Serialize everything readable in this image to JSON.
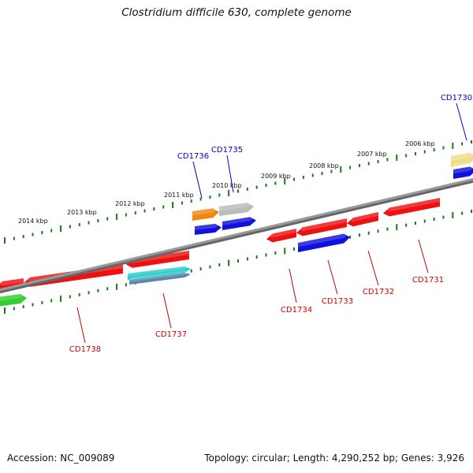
{
  "header": {
    "title": "Clostridium difficile 630, complete genome"
  },
  "footer": {
    "accession": "Accession: NC_009089",
    "summary": "Topology: circular; Length: 4,290,252 bp; Genes: 3,926"
  },
  "colors": {
    "backbone": "#888888",
    "tick": "#1a7a1a",
    "label_forward": "#0000cc",
    "label_reverse": "#cc0000",
    "red": "#ee1111",
    "blue": "#1111dd",
    "orange": "#ee8811",
    "gray": "#bbbbbb",
    "cyan": "#22cccc",
    "steel": "#5588aa",
    "green": "#33cc33",
    "yellow": "#eedd88"
  },
  "scale": {
    "unit": "kbp",
    "labels": [
      "2014 kbp",
      "2013 kbp",
      "2012 kbp",
      "2011 kbp",
      "2010 kbp",
      "2009 kbp",
      "2008 kbp",
      "2007 kbp",
      "2006 kbp"
    ]
  },
  "genes": [
    {
      "id": "CD1730",
      "strand": "forward"
    },
    {
      "id": "CD1731",
      "strand": "reverse"
    },
    {
      "id": "CD1732",
      "strand": "reverse"
    },
    {
      "id": "CD1733",
      "strand": "reverse"
    },
    {
      "id": "CD1734",
      "strand": "reverse"
    },
    {
      "id": "CD1735",
      "strand": "forward"
    },
    {
      "id": "CD1736",
      "strand": "forward"
    },
    {
      "id": "CD1737",
      "strand": "reverse"
    },
    {
      "id": "CD1738",
      "strand": "reverse"
    }
  ]
}
